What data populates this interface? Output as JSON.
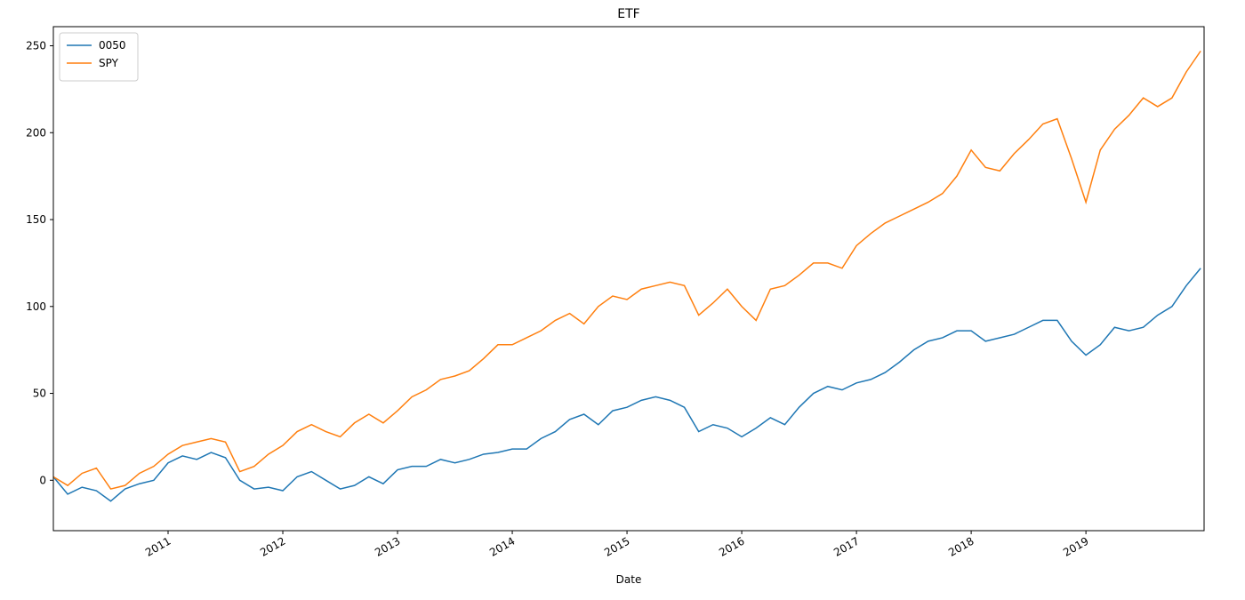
{
  "chart_data": {
    "type": "line",
    "title": "ETF",
    "x_label": "Date",
    "x": [
      2010.0,
      2010.125,
      2010.25,
      2010.375,
      2010.5,
      2010.625,
      2010.75,
      2010.875,
      2011.0,
      2011.125,
      2011.25,
      2011.375,
      2011.5,
      2011.625,
      2011.75,
      2011.875,
      2012.0,
      2012.125,
      2012.25,
      2012.375,
      2012.5,
      2012.625,
      2012.75,
      2012.875,
      2013.0,
      2013.125,
      2013.25,
      2013.375,
      2013.5,
      2013.625,
      2013.75,
      2013.875,
      2014.0,
      2014.125,
      2014.25,
      2014.375,
      2014.5,
      2014.625,
      2014.75,
      2014.875,
      2015.0,
      2015.125,
      2015.25,
      2015.375,
      2015.5,
      2015.625,
      2015.75,
      2015.875,
      2016.0,
      2016.125,
      2016.25,
      2016.375,
      2016.5,
      2016.625,
      2016.75,
      2016.875,
      2017.0,
      2017.125,
      2017.25,
      2017.375,
      2017.5,
      2017.625,
      2017.75,
      2017.875,
      2018.0,
      2018.125,
      2018.25,
      2018.375,
      2018.5,
      2018.625,
      2018.75,
      2018.875,
      2019.0,
      2019.125,
      2019.25,
      2019.375,
      2019.5,
      2019.625,
      2019.75,
      2019.875,
      2020.0
    ],
    "series": [
      {
        "name": "0050",
        "color": "#1f77b4",
        "values": [
          2,
          -8,
          -4,
          -6,
          -12,
          -5,
          -2,
          0,
          10,
          14,
          12,
          16,
          13,
          0,
          -5,
          -4,
          -6,
          2,
          5,
          0,
          -5,
          -3,
          2,
          -2,
          6,
          8,
          8,
          12,
          10,
          12,
          15,
          16,
          18,
          18,
          24,
          28,
          35,
          38,
          32,
          40,
          42,
          46,
          48,
          46,
          42,
          28,
          32,
          30,
          25,
          30,
          36,
          32,
          42,
          50,
          54,
          52,
          56,
          58,
          62,
          68,
          75,
          80,
          82,
          86,
          86,
          80,
          82,
          84,
          88,
          92,
          92,
          80,
          72,
          78,
          88,
          86,
          88,
          95,
          100,
          112,
          122
        ]
      },
      {
        "name": "SPY",
        "color": "#ff7f0e",
        "values": [
          2,
          -3,
          4,
          7,
          -5,
          -3,
          4,
          8,
          15,
          20,
          22,
          24,
          22,
          5,
          8,
          15,
          20,
          28,
          32,
          28,
          25,
          33,
          38,
          33,
          40,
          48,
          52,
          58,
          60,
          63,
          70,
          78,
          78,
          82,
          86,
          92,
          96,
          90,
          100,
          106,
          104,
          110,
          112,
          114,
          112,
          95,
          102,
          110,
          100,
          92,
          110,
          112,
          118,
          125,
          125,
          122,
          135,
          142,
          148,
          152,
          156,
          160,
          165,
          175,
          190,
          180,
          178,
          188,
          196,
          205,
          208,
          185,
          160,
          190,
          202,
          210,
          220,
          215,
          220,
          235,
          247
        ]
      }
    ],
    "xlim": [
      2010.0,
      2020.03
    ],
    "xticks": [
      2011,
      2012,
      2013,
      2014,
      2015,
      2016,
      2017,
      2018,
      2019
    ],
    "ylim": [
      -29,
      261
    ],
    "yticks": [
      0,
      50,
      100,
      150,
      200,
      250
    ],
    "legend": "upper left",
    "grid": false
  }
}
